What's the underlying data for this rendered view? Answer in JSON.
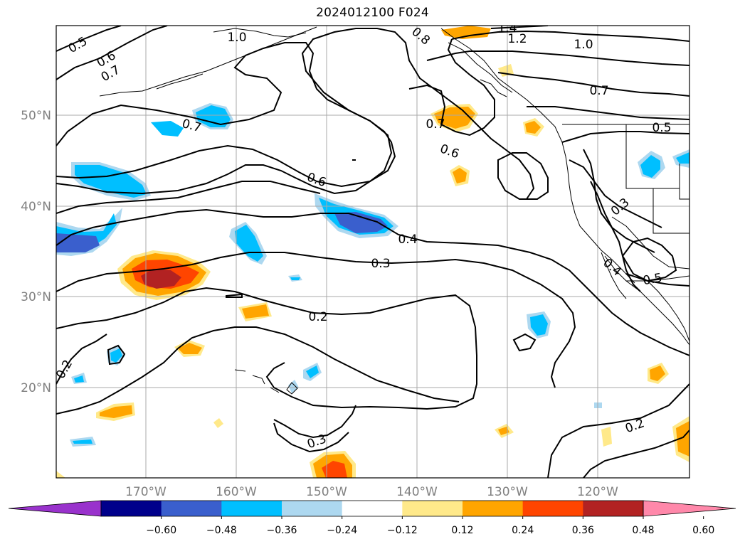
{
  "title": "2024012100 F024",
  "map": {
    "lat_labels": [
      {
        "label": "50°N",
        "lat": 50
      },
      {
        "label": "40°N",
        "lat": 40
      },
      {
        "label": "30°N",
        "lat": 30
      },
      {
        "label": "20°N",
        "lat": 20
      }
    ],
    "lon_labels": [
      {
        "label": "170°W",
        "lon": -170
      },
      {
        "label": "160°W",
        "lon": -160
      },
      {
        "label": "150°W",
        "lon": -150
      },
      {
        "label": "140°W",
        "lon": -140
      },
      {
        "label": "130°W",
        "lon": -130
      },
      {
        "label": "120°W",
        "lon": -120
      }
    ],
    "contour_labels": [
      "1.4",
      "1.2",
      "1.0",
      "1.0",
      "0.5",
      "0.6",
      "0.7",
      "0.7",
      "0.7",
      "0.7",
      "0.6",
      "0.6",
      "0.8",
      "0.5",
      "0.3",
      "0.4",
      "0.3",
      "0.4",
      "0.5",
      "0.2",
      "0.2",
      "0.3",
      "0.2"
    ]
  },
  "colorbar": {
    "ticks": [
      "−0.60",
      "−0.48",
      "−0.36",
      "−0.24",
      "−0.12",
      "0.12",
      "0.24",
      "0.36",
      "0.48",
      "0.60"
    ],
    "colors": [
      "#9932cc",
      "#00008b",
      "#3a5fcd",
      "#00bfff",
      "#add8f0",
      "#ffffff",
      "#ffe98a",
      "#ffa500",
      "#ff4500",
      "#b22222",
      "#ff88aa"
    ]
  }
}
